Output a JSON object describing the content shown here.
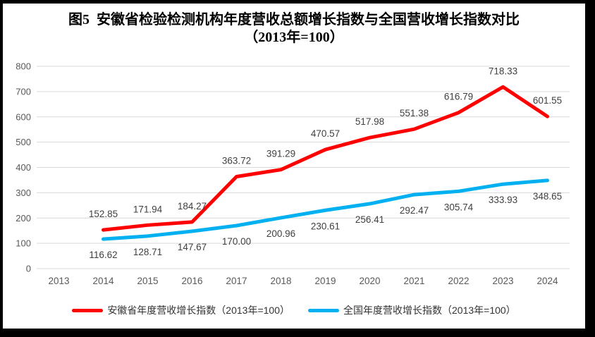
{
  "window": {
    "background": "#ffffff",
    "border_color": "#000000"
  },
  "title": {
    "line1": "图5  安徽省检验检测机构年度营收总额增长指数与全国营收增长指数对比",
    "line2": "（2013年=100）"
  },
  "chart_data": {
    "type": "line",
    "categories": [
      "2013",
      "2014",
      "2015",
      "2016",
      "2017",
      "2018",
      "2019",
      "2020",
      "2021",
      "2022",
      "2023",
      "2024"
    ],
    "series": [
      {
        "name": "安徽省年度营收增长指数（2013年=100）",
        "color": "#ff0000",
        "label_position": "above",
        "values": [
          null,
          152.85,
          171.94,
          184.27,
          363.72,
          391.29,
          470.57,
          517.98,
          551.38,
          616.79,
          718.33,
          601.55
        ]
      },
      {
        "name": "全国年度营收增长指数（2013年=100）",
        "color": "#00b0f0",
        "label_position": "below",
        "values": [
          null,
          116.62,
          128.71,
          147.67,
          170.0,
          200.96,
          230.61,
          256.41,
          292.47,
          305.74,
          333.93,
          348.65
        ]
      }
    ],
    "ylim": [
      0,
      800
    ],
    "yticks": [
      0,
      100,
      200,
      300,
      400,
      500,
      600,
      700,
      800
    ],
    "grid": true,
    "legend_position": "bottom",
    "colors": {
      "gridline": "#d9d9d9",
      "tick_text": "#595959",
      "data_label_text": "#404040"
    }
  }
}
